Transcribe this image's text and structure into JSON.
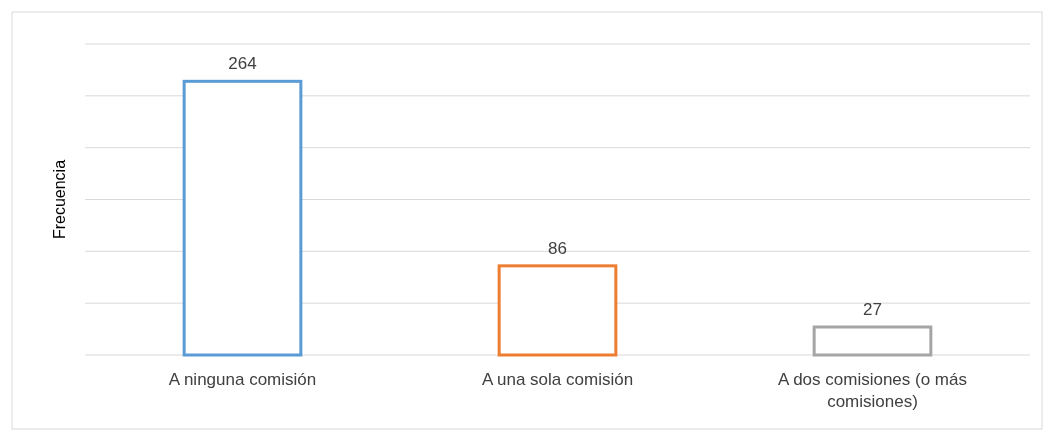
{
  "chart_data": {
    "type": "bar",
    "ylabel": "Frecuencia",
    "categories": [
      "A ninguna comisión",
      "A una sola comisión",
      "A dos comisiones (o más comisiones)"
    ],
    "values": [
      264,
      86,
      27
    ],
    "colors": [
      "#5b9bd5",
      "#ed7d31",
      "#a5a5a5"
    ],
    "ylim": [
      0,
      300
    ],
    "yticks": [
      {
        "value": 0,
        "label": null
      },
      {
        "value": 50,
        "label": null
      },
      {
        "value": 100,
        "label": null
      },
      {
        "value": 150,
        "label": null
      },
      {
        "value": 200,
        "label": null
      },
      {
        "value": 250,
        "label": null
      },
      {
        "value": 300,
        "label": null
      }
    ],
    "grid": true,
    "data_labels": true,
    "tick_labels": "x"
  }
}
